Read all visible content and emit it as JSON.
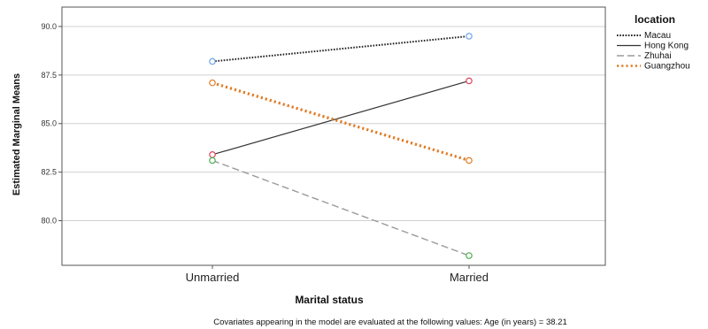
{
  "chart_data": {
    "type": "line",
    "xlabel": "Marital status",
    "ylabel": "Estimated Marginal Means",
    "categories": [
      "Unmarried",
      "Married"
    ],
    "ylim": [
      77.7,
      91.0
    ],
    "yticks": [
      80.0,
      82.5,
      85.0,
      87.5,
      90.0
    ],
    "ytick_labels": [
      "80.0",
      "82.5",
      "85.0",
      "87.5",
      "90.0"
    ],
    "grid": "horizontal",
    "legend": {
      "title": "location",
      "position": "top-right",
      "entries": [
        "Macau",
        "Hong Kong",
        "Zhuhai",
        "Guangzhou"
      ]
    },
    "series": [
      {
        "name": "Macau",
        "values": [
          88.2,
          89.5
        ],
        "color": "#222222",
        "dash": "dotted",
        "marker_color": "#6fa3e8"
      },
      {
        "name": "Hong Kong",
        "values": [
          83.4,
          87.2
        ],
        "color": "#333333",
        "dash": "solid",
        "marker_color": "#d9475b"
      },
      {
        "name": "Zhuhai",
        "values": [
          83.1,
          78.2
        ],
        "color": "#9a9a9a",
        "dash": "dashed",
        "marker_color": "#4caf50"
      },
      {
        "name": "Guangzhou",
        "values": [
          87.1,
          83.1
        ],
        "color": "#e07b24",
        "dash": "dotted-bold",
        "marker_color": "#e07b24"
      }
    ],
    "footnote": "Covariates appearing in the model are evaluated at the following values: Age (in years) = 38.21"
  }
}
